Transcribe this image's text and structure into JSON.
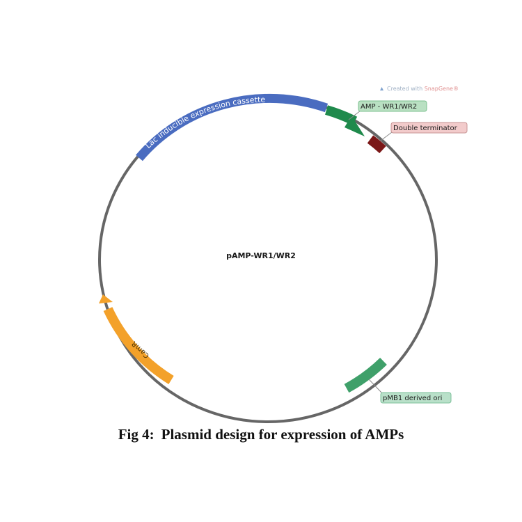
{
  "plasmid": {
    "name": "pAMP-WR1/WR2",
    "features": [
      {
        "id": "lac",
        "label": "Lac inducible expression cassette",
        "color": "#4a6cc0",
        "text_color": "#ffffff",
        "label_style": "arc"
      },
      {
        "id": "amp",
        "label": "AMP - WR1/WR2",
        "color": "#1f8a4c",
        "callout_bg": "#b9e0c2",
        "callout_border": "#7cc08f",
        "label_style": "callout"
      },
      {
        "id": "term",
        "label": "Double terminator",
        "color": "#7b1717",
        "callout_bg": "#f2cbcb",
        "callout_border": "#c79393",
        "label_style": "callout"
      },
      {
        "id": "ori",
        "label": "pMB1 derived ori",
        "color": "#3fa06a",
        "callout_bg": "#b9e0c9",
        "callout_border": "#7cc09a",
        "label_style": "callout"
      },
      {
        "id": "camr",
        "label": "CamR",
        "color": "#f3a12a",
        "text_color": "#4a3000",
        "label_style": "arc"
      }
    ],
    "backbone_color": "#666666"
  },
  "watermark": {
    "prefix": "Created with ",
    "brand": "SnapGene",
    "mark": "®"
  },
  "caption": {
    "number": "Fig 4:",
    "text": "Plasmid design for expression of AMPs"
  }
}
